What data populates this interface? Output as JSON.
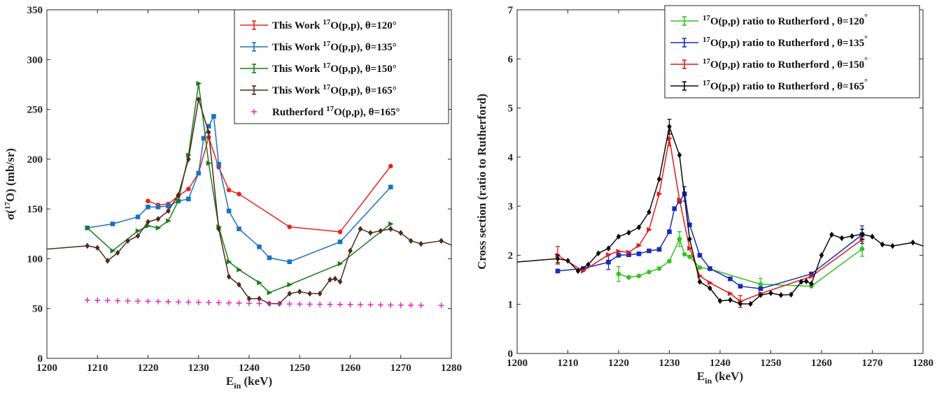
{
  "chart_data": [
    {
      "type": "line",
      "title": "",
      "xlabel": "E",
      "xlabel_sub": "in",
      "xlabel_unit": " (keV)",
      "ylabel": "σ(",
      "ylabel_sup": "17",
      "ylabel_rest": "O) (mb/sr)",
      "xlim": [
        1200,
        1280
      ],
      "ylim": [
        0,
        350
      ],
      "xticks": [
        1200,
        1210,
        1220,
        1230,
        1240,
        1250,
        1260,
        1270,
        1280
      ],
      "yticks": [
        0,
        50,
        100,
        150,
        200,
        250,
        300,
        350
      ],
      "legend_position": "top-right",
      "series": [
        {
          "name_pre": "This Work ",
          "name_sup": "17",
          "name_post": "O(p,p), θ=120°",
          "color": "#e8231c",
          "marker": "circle",
          "x": [
            1220,
            1222,
            1224,
            1226,
            1228,
            1230,
            1232,
            1234,
            1236,
            1238,
            1248,
            1258,
            1268
          ],
          "y": [
            158,
            154,
            155,
            163,
            170,
            186,
            222,
            192,
            169,
            165,
            132,
            127,
            193
          ]
        },
        {
          "name_pre": "This Work ",
          "name_sup": "17",
          "name_post": "O(p,p), θ=135°",
          "color": "#1a72c2",
          "marker": "square",
          "x": [
            1208,
            1213,
            1218,
            1220,
            1222,
            1224,
            1226,
            1228,
            1230,
            1231,
            1232,
            1233,
            1234,
            1236,
            1238,
            1242,
            1244,
            1248,
            1258,
            1268
          ],
          "y": [
            131,
            135,
            142,
            152,
            152,
            153,
            158,
            160,
            186,
            221,
            233,
            243,
            195,
            148,
            130,
            112,
            101,
            97,
            117,
            172
          ]
        },
        {
          "name_pre": "This Work ",
          "name_sup": "17",
          "name_post": "O(p,p), θ=150°",
          "color": "#1a7c1a",
          "marker": "triangle",
          "x": [
            1208,
            1213,
            1218,
            1220,
            1222,
            1224,
            1226,
            1228,
            1230,
            1232,
            1234,
            1236,
            1238,
            1242,
            1244,
            1248,
            1258,
            1268
          ],
          "y": [
            131,
            108,
            128,
            133,
            131,
            138,
            158,
            204,
            276,
            196,
            132,
            97,
            89,
            76,
            66,
            74,
            95,
            135
          ]
        },
        {
          "name_pre": "This Work ",
          "name_sup": "17",
          "name_post": "O(p,p), θ=165°",
          "color": "#4f2a1c",
          "marker": "diamond",
          "x": [
            1196,
            1208,
            1210,
            1212,
            1214,
            1216,
            1218,
            1220,
            1222,
            1224,
            1226,
            1228,
            1230,
            1232,
            1234,
            1236,
            1238,
            1240,
            1242,
            1244,
            1246,
            1248,
            1250,
            1252,
            1254,
            1256,
            1257,
            1258,
            1260,
            1262,
            1264,
            1266,
            1268,
            1270,
            1272,
            1274,
            1278,
            1284
          ],
          "y": [
            108,
            113,
            111,
            98,
            106,
            118,
            123,
            137,
            140,
            148,
            164,
            200,
            260,
            227,
            130,
            82,
            74,
            60,
            60,
            55,
            55,
            65,
            67,
            65,
            65,
            79,
            80,
            77,
            108,
            130,
            126,
            128,
            130,
            126,
            118,
            115,
            118,
            105
          ]
        },
        {
          "name_pre": "Rutherford ",
          "name_sup": "17",
          "name_post": "O(p,p), θ=165°",
          "color": "#e020c0",
          "marker": "plus",
          "no_line": true,
          "x": [
            1208,
            1210,
            1212,
            1214,
            1216,
            1218,
            1220,
            1222,
            1224,
            1226,
            1228,
            1230,
            1232,
            1234,
            1236,
            1238,
            1240,
            1242,
            1244,
            1246,
            1248,
            1250,
            1252,
            1254,
            1256,
            1258,
            1260,
            1262,
            1264,
            1266,
            1268,
            1270,
            1272,
            1274,
            1278
          ],
          "y": [
            58.5,
            58.3,
            58.1,
            57.9,
            57.7,
            57.5,
            57.3,
            57.1,
            56.9,
            56.7,
            56.5,
            56.3,
            56.1,
            55.9,
            55.7,
            55.5,
            55.3,
            55.1,
            54.9,
            54.7,
            54.6,
            54.5,
            54.4,
            54.3,
            54.2,
            54.1,
            54.0,
            53.9,
            53.8,
            53.7,
            53.6,
            53.5,
            53.4,
            53.3,
            53.1
          ]
        }
      ]
    },
    {
      "type": "line",
      "title": "",
      "xlabel": "E",
      "xlabel_sub": "in",
      "xlabel_unit": " (keV)",
      "ylabel": "Cross section (ratio to Rutherford)",
      "xlim": [
        1200,
        1280
      ],
      "ylim": [
        0,
        7
      ],
      "xticks": [
        1200,
        1210,
        1220,
        1230,
        1240,
        1250,
        1260,
        1270,
        1280
      ],
      "yticks": [
        0,
        1,
        2,
        3,
        4,
        5,
        6,
        7
      ],
      "legend_position": "top-right",
      "series": [
        {
          "name_pre": "",
          "name_sup": "17",
          "name_post": "O(p,p) ratio to Rutherford , θ=120",
          "name_deg": "°",
          "color": "#2ec41e",
          "marker": "circle",
          "errorbars": true,
          "x": [
            1220,
            1222,
            1224,
            1226,
            1228,
            1230,
            1232,
            1233,
            1234,
            1236,
            1238,
            1248,
            1258,
            1268
          ],
          "y": [
            1.62,
            1.55,
            1.58,
            1.66,
            1.73,
            1.88,
            2.33,
            2.02,
            1.97,
            1.75,
            1.72,
            1.41,
            1.37,
            2.13
          ],
          "err": [
            0.15,
            0,
            0,
            0,
            0,
            0,
            0.15,
            0,
            0,
            0,
            0,
            0.12,
            0,
            0.15
          ]
        },
        {
          "name_pre": "",
          "name_sup": "17",
          "name_post": "O(p,p) ratio to Rutherford , θ=135",
          "name_deg": "°",
          "color": "#1a2bb5",
          "marker": "square",
          "errorbars": true,
          "x": [
            1208,
            1213,
            1218,
            1220,
            1222,
            1224,
            1226,
            1228,
            1230,
            1231,
            1232,
            1233,
            1234,
            1236,
            1238,
            1242,
            1244,
            1248,
            1258,
            1268
          ],
          "y": [
            1.68,
            1.73,
            1.86,
            2.0,
            2.01,
            2.03,
            2.09,
            2.12,
            2.48,
            2.95,
            3.1,
            3.25,
            2.62,
            2.0,
            1.73,
            1.52,
            1.37,
            1.32,
            1.62,
            2.42
          ],
          "err": [
            0,
            0,
            0.15,
            0,
            0,
            0,
            0,
            0,
            0,
            0,
            0,
            0.15,
            0,
            0,
            0,
            0,
            0,
            0,
            0,
            0.18
          ]
        },
        {
          "name_pre": "",
          "name_sup": "17",
          "name_post": "O(p,p) ratio to Rutherford , θ=150",
          "name_deg": "°",
          "color": "#e01a1a",
          "marker": "triangle",
          "errorbars": true,
          "x": [
            1208,
            1213,
            1218,
            1220,
            1222,
            1224,
            1226,
            1228,
            1230,
            1232,
            1234,
            1236,
            1238,
            1242,
            1244,
            1248,
            1258,
            1268
          ],
          "y": [
            2.0,
            1.68,
            2.01,
            2.08,
            2.06,
            2.2,
            2.52,
            3.25,
            4.38,
            3.13,
            2.14,
            1.58,
            1.44,
            1.22,
            1.06,
            1.22,
            1.57,
            2.32
          ],
          "err": [
            0.18,
            0,
            0,
            0,
            0,
            0,
            0,
            0,
            0.15,
            0,
            0,
            0,
            0,
            0,
            0.12,
            0,
            0,
            0
          ]
        },
        {
          "name_pre": "",
          "name_sup": "17",
          "name_post": "O(p,p) ratio to Rutherford , θ=165",
          "name_deg": "°",
          "color": "#0a0a0a",
          "marker": "diamond",
          "errorbars": true,
          "x": [
            1196,
            1208,
            1210,
            1212,
            1214,
            1216,
            1218,
            1220,
            1222,
            1224,
            1226,
            1228,
            1230,
            1232,
            1234,
            1236,
            1238,
            1240,
            1242,
            1244,
            1246,
            1248,
            1250,
            1252,
            1254,
            1256,
            1257,
            1258,
            1260,
            1262,
            1264,
            1266,
            1268,
            1270,
            1272,
            1274,
            1278,
            1284
          ],
          "y": [
            1.83,
            1.93,
            1.89,
            1.68,
            1.81,
            2.04,
            2.14,
            2.38,
            2.46,
            2.57,
            2.88,
            3.55,
            4.62,
            4.04,
            2.33,
            1.46,
            1.33,
            1.07,
            1.09,
            1.01,
            1.01,
            1.19,
            1.23,
            1.19,
            1.2,
            1.46,
            1.47,
            1.42,
            2.0,
            2.42,
            2.35,
            2.39,
            2.43,
            2.38,
            2.22,
            2.19,
            2.26,
            2.05
          ],
          "err": [
            0,
            0.08,
            0,
            0,
            0,
            0,
            0,
            0,
            0,
            0,
            0,
            0,
            0.15,
            0,
            0,
            0,
            0,
            0,
            0,
            0,
            0,
            0,
            0,
            0,
            0,
            0,
            0,
            0,
            0,
            0,
            0,
            0,
            0.1,
            0,
            0,
            0,
            0,
            0
          ]
        }
      ]
    }
  ]
}
